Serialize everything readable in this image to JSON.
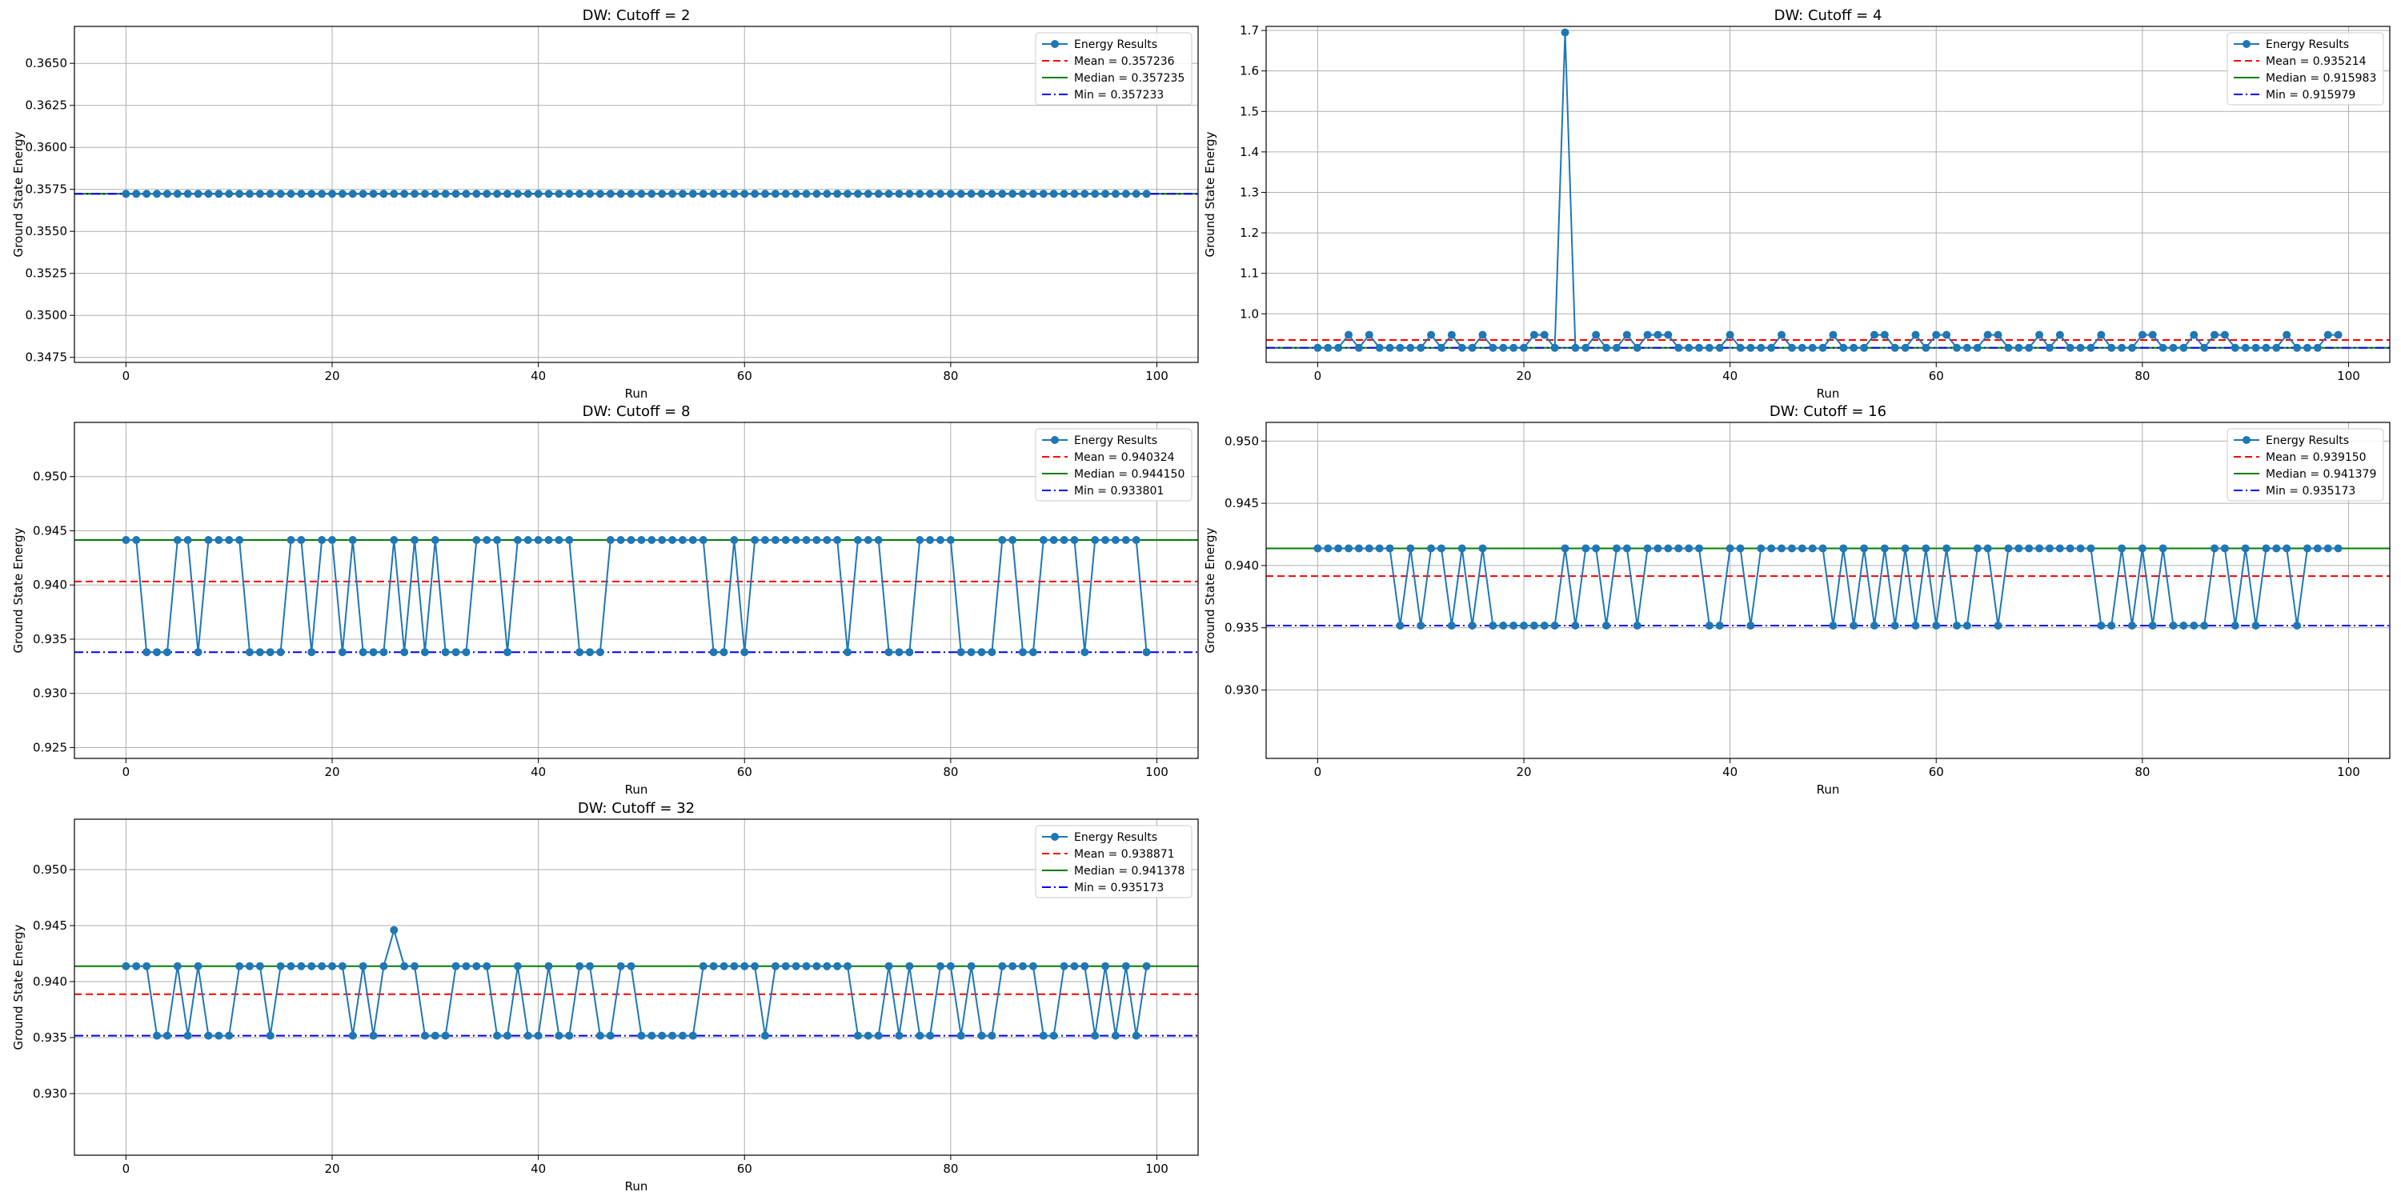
{
  "figure": {
    "xlabel": "Run",
    "ylabel": "Ground State Energy"
  },
  "chart_data": [
    {
      "type": "line",
      "title": "DW: Cutoff = 2",
      "xlabel": "Run",
      "ylabel": "Ground State Energy",
      "xlim": [
        -5,
        104
      ],
      "ylim": [
        0.3472,
        0.3672
      ],
      "xticks": [
        0,
        20,
        40,
        60,
        80,
        100
      ],
      "xtick_labels": [
        "0",
        "20",
        "40",
        "60",
        "80",
        "100"
      ],
      "yticks": [
        0.3475,
        0.35,
        0.3525,
        0.355,
        0.3575,
        0.36,
        0.3625,
        0.365
      ],
      "ytick_labels": [
        "0.3475",
        "0.3500",
        "0.3525",
        "0.3550",
        "0.3575",
        "0.3600",
        "0.3625",
        "0.3650"
      ],
      "grid": true,
      "legend_position": "top-right",
      "series": [
        {
          "name": "Energy Results",
          "x_start": 0,
          "values": [
            0.357233,
            0.357234,
            0.357236,
            0.357234,
            0.357236,
            0.357235,
            0.357238,
            0.357234,
            0.357236,
            0.357234,
            0.357235,
            0.357236,
            0.357234,
            0.357237,
            0.357235,
            0.357234,
            0.357236,
            0.357238,
            0.357235,
            0.357234,
            0.357236,
            0.357235,
            0.357234,
            0.357236,
            0.357237,
            0.357235,
            0.357234,
            0.357236,
            0.357235,
            0.357237,
            0.357234,
            0.357235,
            0.357236,
            0.357234,
            0.357235,
            0.357237,
            0.357236,
            0.357234,
            0.357235,
            0.357236,
            0.357235,
            0.357234,
            0.357236,
            0.357237,
            0.357235,
            0.357234,
            0.357236,
            0.357235,
            0.357234,
            0.357237,
            0.357236,
            0.357235,
            0.357234,
            0.357236,
            0.357235,
            0.357237,
            0.357234,
            0.357235,
            0.357236,
            0.357234,
            0.357235,
            0.357236,
            0.357234,
            0.357237,
            0.357235,
            0.357236,
            0.357234,
            0.357235,
            0.357236,
            0.357237,
            0.357234,
            0.357235,
            0.357236,
            0.357234,
            0.357235,
            0.357237,
            0.357236,
            0.357234,
            0.357235,
            0.357236,
            0.357235,
            0.357234,
            0.357236,
            0.357237,
            0.357235,
            0.357234,
            0.357236,
            0.357235,
            0.357234,
            0.357237,
            0.357236,
            0.357235,
            0.357234,
            0.357236,
            0.357235,
            0.357237,
            0.357234,
            0.357235,
            0.357236,
            0.357234
          ]
        }
      ],
      "ref_lines": [
        {
          "name": "Mean",
          "label": "Mean = 0.357236",
          "value": 0.357236,
          "color": "#ff0000",
          "style": "dashed"
        },
        {
          "name": "Median",
          "label": "Median = 0.357235",
          "value": 0.357235,
          "color": "#008000",
          "style": "solid"
        },
        {
          "name": "Min",
          "label": "Min = 0.357233",
          "value": 0.357233,
          "color": "#0000ff",
          "style": "dashdot"
        }
      ]
    },
    {
      "type": "line",
      "title": "DW: Cutoff = 4",
      "xlabel": "Run",
      "ylabel": "Ground State Energy",
      "xlim": [
        -5,
        104
      ],
      "ylim": [
        0.88,
        1.71
      ],
      "xticks": [
        0,
        20,
        40,
        60,
        80,
        100
      ],
      "xtick_labels": [
        "0",
        "20",
        "40",
        "60",
        "80",
        "100"
      ],
      "yticks": [
        1.0,
        1.1,
        1.2,
        1.3,
        1.4,
        1.5,
        1.6,
        1.7
      ],
      "ytick_labels": [
        "1.0",
        "1.1",
        "1.2",
        "1.3",
        "1.4",
        "1.5",
        "1.6",
        "1.7"
      ],
      "grid": true,
      "legend_position": "top-right",
      "series": [
        {
          "name": "Energy Results",
          "x_start": 0,
          "values": [
            0.915979,
            0.915979,
            0.915979,
            0.94805,
            0.915979,
            0.94805,
            0.915979,
            0.915979,
            0.915979,
            0.915979,
            0.915979,
            0.94805,
            0.915979,
            0.94805,
            0.915979,
            0.915979,
            0.94805,
            0.915979,
            0.915979,
            0.915979,
            0.915979,
            0.94805,
            0.94805,
            0.915979,
            1.695,
            0.915979,
            0.915979,
            0.94805,
            0.915979,
            0.915979,
            0.94805,
            0.915979,
            0.94805,
            0.94805,
            0.94805,
            0.915979,
            0.915979,
            0.915979,
            0.915979,
            0.915979,
            0.94805,
            0.915979,
            0.915979,
            0.915979,
            0.915979,
            0.94805,
            0.915979,
            0.915979,
            0.915979,
            0.915979,
            0.94805,
            0.915979,
            0.915979,
            0.915979,
            0.94805,
            0.94805,
            0.915979,
            0.915979,
            0.94805,
            0.915979,
            0.94805,
            0.94805,
            0.915979,
            0.915979,
            0.915979,
            0.94805,
            0.94805,
            0.915979,
            0.915979,
            0.915979,
            0.94805,
            0.915979,
            0.94805,
            0.915979,
            0.915979,
            0.915979,
            0.94805,
            0.915979,
            0.915979,
            0.915979,
            0.94805,
            0.94805,
            0.915979,
            0.915979,
            0.915979,
            0.94805,
            0.915979,
            0.94805,
            0.94805,
            0.915979,
            0.915979,
            0.915979,
            0.915979,
            0.915979,
            0.94805,
            0.915979,
            0.915979,
            0.915979,
            0.94805,
            0.94805
          ]
        }
      ],
      "ref_lines": [
        {
          "name": "Mean",
          "label": "Mean = 0.935214",
          "value": 0.935214,
          "color": "#ff0000",
          "style": "dashed"
        },
        {
          "name": "Median",
          "label": "Median = 0.915983",
          "value": 0.915983,
          "color": "#008000",
          "style": "solid"
        },
        {
          "name": "Min",
          "label": "Min = 0.915979",
          "value": 0.915979,
          "color": "#0000ff",
          "style": "dashdot"
        }
      ]
    },
    {
      "type": "line",
      "title": "DW: Cutoff = 8",
      "xlabel": "Run",
      "ylabel": "Ground State Energy",
      "xlim": [
        -5,
        104
      ],
      "ylim": [
        0.924,
        0.955
      ],
      "xticks": [
        0,
        20,
        40,
        60,
        80,
        100
      ],
      "xtick_labels": [
        "0",
        "20",
        "40",
        "60",
        "80",
        "100"
      ],
      "yticks": [
        0.925,
        0.93,
        0.935,
        0.94,
        0.945,
        0.95
      ],
      "ytick_labels": [
        "0.925",
        "0.930",
        "0.935",
        "0.940",
        "0.945",
        "0.950"
      ],
      "grid": true,
      "legend_position": "top-right",
      "series": [
        {
          "name": "Energy Results",
          "x_start": 0,
          "values": [
            0.94415,
            0.94415,
            0.933801,
            0.933801,
            0.933801,
            0.94415,
            0.94415,
            0.933801,
            0.94415,
            0.94415,
            0.94415,
            0.94415,
            0.933801,
            0.933801,
            0.933801,
            0.933801,
            0.94415,
            0.94415,
            0.933801,
            0.94415,
            0.94415,
            0.933801,
            0.94415,
            0.933801,
            0.933801,
            0.933801,
            0.94415,
            0.933801,
            0.94415,
            0.933801,
            0.94415,
            0.933801,
            0.933801,
            0.933801,
            0.94415,
            0.94415,
            0.94415,
            0.933801,
            0.94415,
            0.94415,
            0.94415,
            0.94415,
            0.94415,
            0.94415,
            0.933801,
            0.933801,
            0.933801,
            0.94415,
            0.94415,
            0.94415,
            0.94415,
            0.94415,
            0.94415,
            0.94415,
            0.94415,
            0.94415,
            0.94415,
            0.933801,
            0.933801,
            0.94415,
            0.933801,
            0.94415,
            0.94415,
            0.94415,
            0.94415,
            0.94415,
            0.94415,
            0.94415,
            0.94415,
            0.94415,
            0.933801,
            0.94415,
            0.94415,
            0.94415,
            0.933801,
            0.933801,
            0.933801,
            0.94415,
            0.94415,
            0.94415,
            0.94415,
            0.933801,
            0.933801,
            0.933801,
            0.933801,
            0.94415,
            0.94415,
            0.933801,
            0.933801,
            0.94415,
            0.94415,
            0.94415,
            0.94415,
            0.933801,
            0.94415,
            0.94415,
            0.94415,
            0.94415,
            0.94415,
            0.933801
          ]
        }
      ],
      "ref_lines": [
        {
          "name": "Mean",
          "label": "Mean = 0.940324",
          "value": 0.940324,
          "color": "#ff0000",
          "style": "dashed"
        },
        {
          "name": "Median",
          "label": "Median = 0.944150",
          "value": 0.94415,
          "color": "#008000",
          "style": "solid"
        },
        {
          "name": "Min",
          "label": "Min = 0.933801",
          "value": 0.933801,
          "color": "#0000ff",
          "style": "dashdot"
        }
      ]
    },
    {
      "type": "line",
      "title": "DW: Cutoff = 16",
      "xlabel": "Run",
      "ylabel": "Ground State Energy",
      "xlim": [
        -5,
        104
      ],
      "ylim": [
        0.9245,
        0.9515
      ],
      "xticks": [
        0,
        20,
        40,
        60,
        80,
        100
      ],
      "xtick_labels": [
        "0",
        "20",
        "40",
        "60",
        "80",
        "100"
      ],
      "yticks": [
        0.93,
        0.935,
        0.94,
        0.945,
        0.95
      ],
      "ytick_labels": [
        "0.930",
        "0.935",
        "0.940",
        "0.945",
        "0.950"
      ],
      "grid": true,
      "legend_position": "top-right",
      "series": [
        {
          "name": "Energy Results",
          "x_start": 0,
          "values": [
            0.941379,
            0.941379,
            0.941379,
            0.941379,
            0.941379,
            0.941379,
            0.941379,
            0.941379,
            0.935173,
            0.941379,
            0.935173,
            0.941379,
            0.941379,
            0.935173,
            0.941379,
            0.935173,
            0.941379,
            0.935173,
            0.935173,
            0.935173,
            0.935173,
            0.935173,
            0.935173,
            0.935173,
            0.941379,
            0.935173,
            0.941379,
            0.941379,
            0.935173,
            0.941379,
            0.941379,
            0.935173,
            0.941379,
            0.941379,
            0.941379,
            0.941379,
            0.941379,
            0.941379,
            0.935173,
            0.935173,
            0.941379,
            0.941379,
            0.935173,
            0.941379,
            0.941379,
            0.941379,
            0.941379,
            0.941379,
            0.941379,
            0.941379,
            0.935173,
            0.941379,
            0.935173,
            0.941379,
            0.935173,
            0.941379,
            0.935173,
            0.941379,
            0.935173,
            0.941379,
            0.935173,
            0.941379,
            0.935173,
            0.935173,
            0.941379,
            0.941379,
            0.935173,
            0.941379,
            0.941379,
            0.941379,
            0.941379,
            0.941379,
            0.941379,
            0.941379,
            0.941379,
            0.941379,
            0.935173,
            0.935173,
            0.941379,
            0.935173,
            0.941379,
            0.935173,
            0.941379,
            0.935173,
            0.935173,
            0.935173,
            0.935173,
            0.941379,
            0.941379,
            0.935173,
            0.941379,
            0.935173,
            0.941379,
            0.941379,
            0.941379,
            0.935173,
            0.941379,
            0.941379,
            0.941379,
            0.941379
          ]
        }
      ],
      "ref_lines": [
        {
          "name": "Mean",
          "label": "Mean = 0.939150",
          "value": 0.93915,
          "color": "#ff0000",
          "style": "dashed"
        },
        {
          "name": "Median",
          "label": "Median = 0.941379",
          "value": 0.941379,
          "color": "#008000",
          "style": "solid"
        },
        {
          "name": "Min",
          "label": "Min = 0.935173",
          "value": 0.935173,
          "color": "#0000ff",
          "style": "dashdot"
        }
      ]
    },
    {
      "type": "line",
      "title": "DW: Cutoff = 32",
      "xlabel": "Run",
      "ylabel": "Ground State Energy",
      "xlim": [
        -5,
        104
      ],
      "ylim": [
        0.9245,
        0.9545
      ],
      "xticks": [
        0,
        20,
        40,
        60,
        80,
        100
      ],
      "xtick_labels": [
        "0",
        "20",
        "40",
        "60",
        "80",
        "100"
      ],
      "yticks": [
        0.93,
        0.935,
        0.94,
        0.945,
        0.95
      ],
      "ytick_labels": [
        "0.930",
        "0.935",
        "0.940",
        "0.945",
        "0.950"
      ],
      "grid": true,
      "legend_position": "top-right",
      "series": [
        {
          "name": "Energy Results",
          "x_start": 0,
          "values": [
            0.941378,
            0.941378,
            0.941378,
            0.935173,
            0.935173,
            0.941378,
            0.935173,
            0.941378,
            0.935173,
            0.935173,
            0.935173,
            0.941378,
            0.941378,
            0.941378,
            0.935173,
            0.941378,
            0.941378,
            0.941378,
            0.941378,
            0.941378,
            0.941378,
            0.941378,
            0.935173,
            0.941378,
            0.935173,
            0.941378,
            0.9446,
            0.941378,
            0.941378,
            0.935173,
            0.935173,
            0.935173,
            0.941378,
            0.941378,
            0.941378,
            0.941378,
            0.935173,
            0.935173,
            0.941378,
            0.935173,
            0.935173,
            0.941378,
            0.935173,
            0.935173,
            0.941378,
            0.941378,
            0.935173,
            0.935173,
            0.941378,
            0.941378,
            0.935173,
            0.935173,
            0.935173,
            0.935173,
            0.935173,
            0.935173,
            0.941378,
            0.941378,
            0.941378,
            0.941378,
            0.941378,
            0.941378,
            0.935173,
            0.941378,
            0.941378,
            0.941378,
            0.941378,
            0.941378,
            0.941378,
            0.941378,
            0.941378,
            0.935173,
            0.935173,
            0.935173,
            0.941378,
            0.935173,
            0.941378,
            0.935173,
            0.935173,
            0.941378,
            0.941378,
            0.935173,
            0.941378,
            0.935173,
            0.935173,
            0.941378,
            0.941378,
            0.941378,
            0.941378,
            0.935173,
            0.935173,
            0.941378,
            0.941378,
            0.941378,
            0.935173,
            0.941378,
            0.935173,
            0.941378,
            0.935173,
            0.941378
          ]
        }
      ],
      "ref_lines": [
        {
          "name": "Mean",
          "label": "Mean = 0.938871",
          "value": 0.938871,
          "color": "#ff0000",
          "style": "dashed"
        },
        {
          "name": "Median",
          "label": "Median = 0.941378",
          "value": 0.941378,
          "color": "#008000",
          "style": "solid"
        },
        {
          "name": "Min",
          "label": "Min = 0.935173",
          "value": 0.935173,
          "color": "#0000ff",
          "style": "dashdot"
        }
      ]
    }
  ],
  "colors": {
    "series": "#1f77b4",
    "grid": "#b0b0b0",
    "axes": "#000000"
  }
}
